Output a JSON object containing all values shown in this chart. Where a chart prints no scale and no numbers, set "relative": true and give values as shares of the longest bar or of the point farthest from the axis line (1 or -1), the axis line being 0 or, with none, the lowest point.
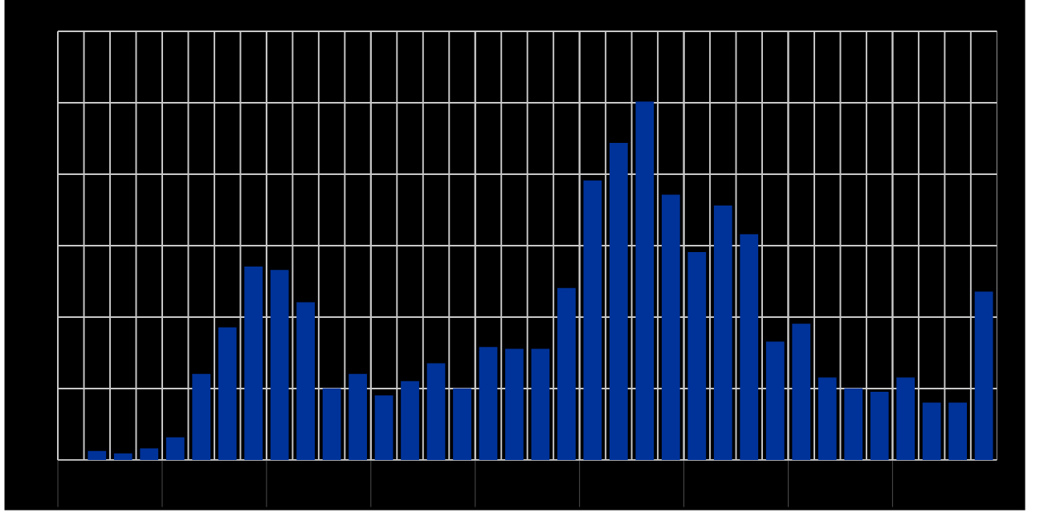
{
  "chart_data": {
    "type": "bar",
    "relative": true,
    "grid": true,
    "color": "#003399",
    "categories": [
      null,
      null,
      null,
      null,
      null,
      null,
      null,
      null,
      null,
      null,
      null,
      null,
      null,
      null,
      null,
      null,
      null,
      null,
      null,
      null,
      null,
      null,
      null,
      null,
      null,
      null,
      null,
      null,
      null,
      null,
      null,
      null,
      null,
      null,
      null
    ],
    "values": [
      0.025,
      0.018,
      0.032,
      0.063,
      0.24,
      0.37,
      0.54,
      0.53,
      0.44,
      0.2,
      0.24,
      0.18,
      0.22,
      0.27,
      0.2,
      0.315,
      0.31,
      0.31,
      0.48,
      0.78,
      0.885,
      1,
      0.74,
      0.58,
      0.71,
      0.63,
      0.33,
      0.38,
      0.23,
      0.2,
      0.19,
      0.23,
      0.16,
      0.16,
      0.47
    ]
  }
}
